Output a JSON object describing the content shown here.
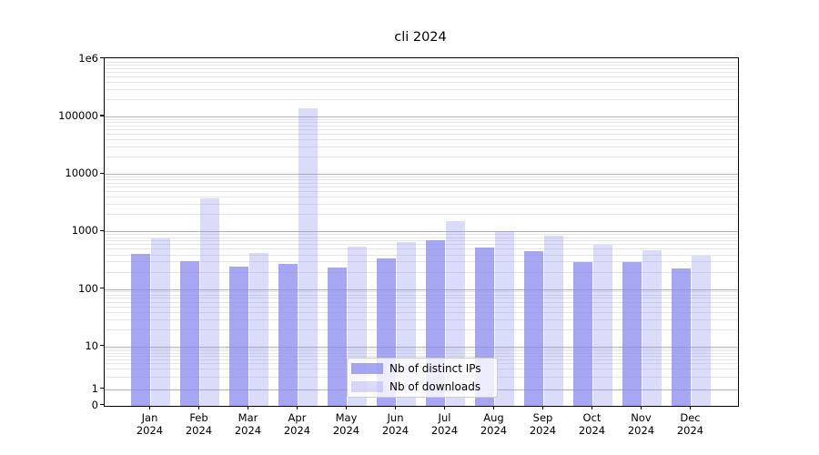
{
  "title": "cli 2024",
  "legend": {
    "entries": [
      {
        "label": "Nb of distinct IPs",
        "color": "rgba(136,136,238,0.75)"
      },
      {
        "label": "Nb of downloads",
        "color": "rgba(136,136,238,0.30)"
      }
    ]
  },
  "y_axis": {
    "ticks": [
      {
        "label": "1e6",
        "value": 1000000
      },
      {
        "label": "100000",
        "value": 100000
      },
      {
        "label": "10000",
        "value": 10000
      },
      {
        "label": "1000",
        "value": 1000
      },
      {
        "label": "100",
        "value": 100
      },
      {
        "label": "10",
        "value": 10
      },
      {
        "label": "1",
        "value": 1
      },
      {
        "label": "0",
        "value": 0
      }
    ]
  },
  "chart_data": {
    "type": "bar",
    "title": "cli 2024",
    "categories": [
      "Jan 2024",
      "Feb 2024",
      "Mar 2024",
      "Apr 2024",
      "May 2024",
      "Jun 2024",
      "Jul 2024",
      "Aug 2024",
      "Sep 2024",
      "Oct 2024",
      "Nov 2024",
      "Dec 2024"
    ],
    "series": [
      {
        "name": "Nb of distinct IPs",
        "values": [
          410,
          300,
          245,
          270,
          235,
          340,
          700,
          530,
          450,
          290,
          295,
          230
        ]
      },
      {
        "name": "Nb of downloads",
        "values": [
          750,
          3700,
          420,
          140000,
          550,
          660,
          1500,
          1020,
          850,
          580,
          465,
          385
        ]
      }
    ],
    "yscale": "symlog",
    "ylim": [
      0,
      1000000
    ],
    "grid": true,
    "legend_position": "lower center"
  }
}
